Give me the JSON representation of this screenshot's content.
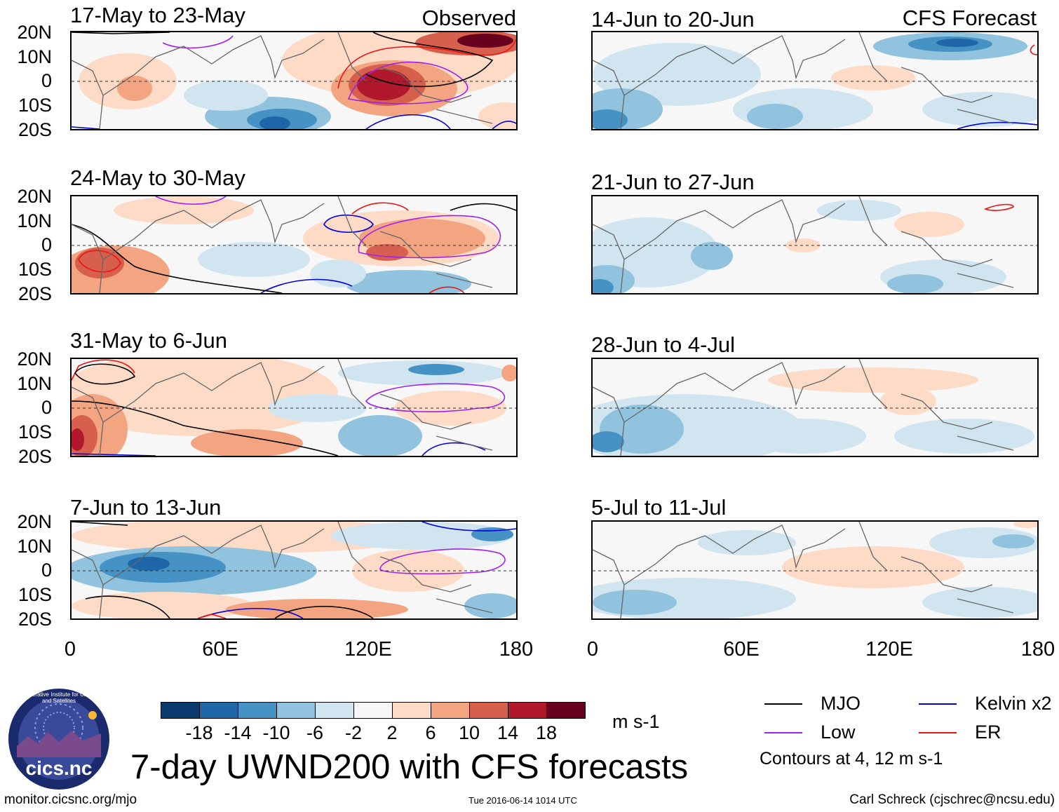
{
  "figure": {
    "title": "7-day UWND200 with CFS forecasts",
    "units": "m s-1",
    "footer_left": "monitor.cicsnc.org/mjo",
    "footer_center": "Tue 2016-06-14 1014 UTC",
    "footer_right": "Carl Schreck (cjschrec@ncsu.edu)",
    "logo": {
      "org": "Cooperative Institute for Climate and Satellites",
      "label": "cics.nc"
    }
  },
  "axes": {
    "lat_labels": [
      "20N",
      "10N",
      "0",
      "10S",
      "20S"
    ],
    "lon_labels": [
      "0",
      "60E",
      "120E",
      "180"
    ]
  },
  "panels": {
    "observed": {
      "label": "Observed",
      "dates": [
        "17-May to 23-May",
        "24-May to 30-May",
        "31-May to 6-Jun",
        "7-Jun to 13-Jun"
      ]
    },
    "forecast": {
      "label": "CFS Forecast",
      "dates": [
        "14-Jun to 20-Jun",
        "21-Jun to 27-Jun",
        "28-Jun to 4-Jul",
        "5-Jul to 11-Jul"
      ]
    }
  },
  "colorbar": {
    "ticks": [
      "-18",
      "-14",
      "-10",
      "-6",
      "-2",
      "2",
      "6",
      "10",
      "14",
      "18"
    ],
    "colors": [
      "#0b3b6e",
      "#1f66a8",
      "#4692c5",
      "#91c2de",
      "#d1e5f0",
      "#f7f7f7",
      "#fddbc7",
      "#f3a481",
      "#d6604d",
      "#b2182b",
      "#67001f"
    ]
  },
  "legend": {
    "items": [
      {
        "label": "MJO",
        "color": "#000000"
      },
      {
        "label": "Kelvin x2",
        "color": "#0000dd"
      },
      {
        "label": "Low",
        "color": "#a020f0"
      },
      {
        "label": "ER",
        "color": "#ee1111"
      }
    ],
    "note": "Contours at 4, 12 m s-1"
  },
  "map_colors": {
    "coast": "#666666",
    "land": "#f7f7f7",
    "equator": "#333333"
  }
}
